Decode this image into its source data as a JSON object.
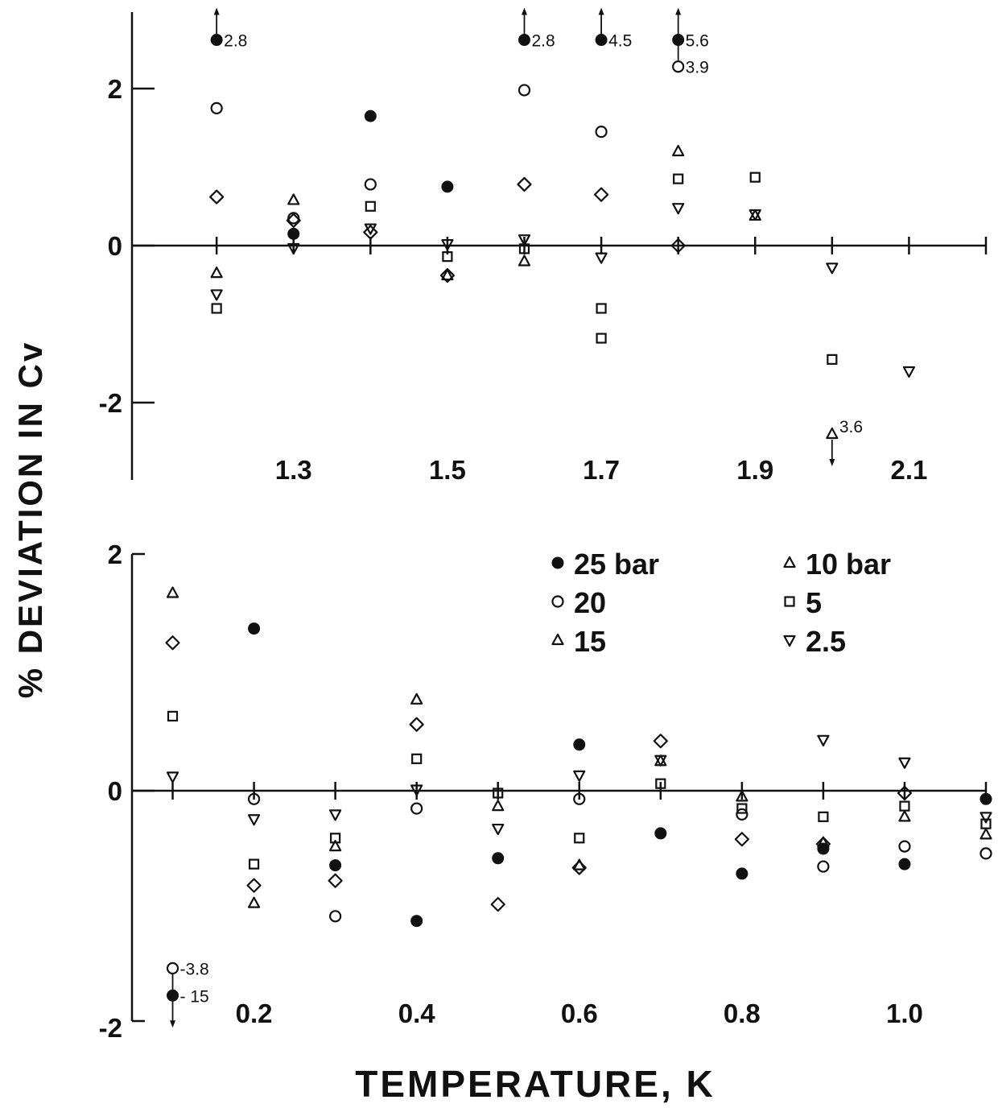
{
  "axis_titles": {
    "y": "% DEVIATION IN Cv",
    "x": "TEMPERATURE, K"
  },
  "legend": [
    {
      "marker": "filled-circle",
      "label": "25 bar"
    },
    {
      "marker": "open-circle",
      "label": "20"
    },
    {
      "marker": "triangle-up",
      "label": "15"
    },
    {
      "marker": "triangle-up",
      "label": "10 bar"
    },
    {
      "marker": "square",
      "label": "5"
    },
    {
      "marker": "triangle-down",
      "label": "2.5"
    }
  ],
  "chart_data": [
    {
      "type": "scatter",
      "panel": "upper",
      "xlabel": "",
      "ylabel": "% DEVIATION IN Cv",
      "xlim": [
        1.09,
        2.2
      ],
      "ylim": [
        -2.9,
        2.9
      ],
      "x_ticks": [
        1.2,
        1.3,
        1.4,
        1.5,
        1.6,
        1.7,
        1.8,
        1.9,
        2.0,
        2.1,
        2.2
      ],
      "x_tick_labels": [
        "1.3",
        "1.5",
        "1.7",
        "1.9",
        "2.1"
      ],
      "x_tick_label_values": [
        1.3,
        1.5,
        1.7,
        1.9,
        2.1
      ],
      "y_ticks": [
        -2,
        0,
        2
      ],
      "y_tick_labels": [
        "-2",
        "0",
        "2"
      ],
      "series": [
        {
          "name": "25 bar",
          "marker": "filled-circle",
          "points": [
            [
              1.3,
              0.15
            ],
            [
              1.4,
              1.65
            ],
            [
              1.5,
              0.75
            ]
          ]
        },
        {
          "name": "20",
          "marker": "open-circle",
          "points": [
            [
              1.2,
              1.75
            ],
            [
              1.3,
              0.35
            ],
            [
              1.4,
              0.78
            ],
            [
              1.6,
              1.98
            ],
            [
              1.7,
              1.45
            ]
          ]
        },
        {
          "name": "15",
          "marker": "triangle-up",
          "points": [
            [
              1.3,
              0.58
            ],
            [
              1.6,
              -0.2
            ],
            [
              1.8,
              1.2
            ]
          ]
        },
        {
          "name": "10 bar",
          "marker": "triangle-up",
          "points": [
            [
              1.2,
              -0.35
            ],
            [
              1.5,
              -0.38
            ],
            [
              1.9,
              0.38
            ]
          ]
        },
        {
          "name": "5",
          "marker": "square",
          "points": [
            [
              1.2,
              -0.8
            ],
            [
              1.4,
              0.5
            ],
            [
              1.5,
              -0.14
            ],
            [
              1.6,
              -0.04
            ],
            [
              1.7,
              -0.8
            ],
            [
              1.7,
              -1.18
            ],
            [
              1.8,
              0.85
            ],
            [
              1.9,
              0.87
            ],
            [
              2.0,
              -1.45
            ]
          ]
        },
        {
          "name": "2.5",
          "marker": "triangle-down",
          "points": [
            [
              1.2,
              -0.62
            ],
            [
              1.3,
              -0.03
            ],
            [
              1.4,
              0.22
            ],
            [
              1.5,
              0.02
            ],
            [
              1.6,
              0.08
            ],
            [
              1.7,
              -0.15
            ],
            [
              1.8,
              0.48
            ],
            [
              1.9,
              0.4
            ],
            [
              2.0,
              -0.28
            ],
            [
              2.1,
              -1.6
            ]
          ]
        },
        {
          "name": "",
          "marker": "diamond",
          "points": [
            [
              1.2,
              0.62
            ],
            [
              1.3,
              0.32
            ],
            [
              1.4,
              0.17
            ],
            [
              1.5,
              -0.38
            ],
            [
              1.6,
              0.78
            ],
            [
              1.7,
              0.65
            ],
            [
              1.8,
              0.0
            ]
          ]
        }
      ],
      "offscale": [
        {
          "marker": "filled-circle",
          "x": 1.2,
          "y_plot": 2.62,
          "label": "2.8",
          "arrow": "up"
        },
        {
          "marker": "filled-circle",
          "x": 1.6,
          "y_plot": 2.62,
          "label": "2.8",
          "arrow": "up"
        },
        {
          "marker": "filled-circle",
          "x": 1.7,
          "y_plot": 2.62,
          "label": "4.5",
          "arrow": "up"
        },
        {
          "marker": "filled-circle",
          "x": 1.8,
          "y_plot": 2.62,
          "label": "5.6",
          "arrow": "up"
        },
        {
          "marker": "open-circle",
          "x": 1.8,
          "y_plot": 2.28,
          "label": "3.9",
          "arrow": "up"
        },
        {
          "marker": "triangle-up",
          "x": 2.0,
          "y_plot": -2.4,
          "label": "3.6",
          "arrow": "down"
        }
      ]
    },
    {
      "type": "scatter",
      "panel": "lower",
      "xlabel": "TEMPERATURE, K",
      "ylabel": "% DEVIATION IN Cv",
      "xlim": [
        0.05,
        1.1
      ],
      "ylim": [
        -2.0,
        2.0
      ],
      "x_ticks": [
        0.1,
        0.2,
        0.3,
        0.4,
        0.5,
        0.6,
        0.7,
        0.8,
        0.9,
        1.0,
        1.1
      ],
      "x_tick_labels": [
        "0.2",
        "0.4",
        "0.6",
        "0.8",
        "1.0"
      ],
      "x_tick_label_values": [
        0.2,
        0.4,
        0.6,
        0.8,
        1.0
      ],
      "y_ticks": [
        -2,
        0,
        2
      ],
      "y_tick_labels": [
        "-2",
        "0",
        "2"
      ],
      "series": [
        {
          "name": "25 bar",
          "marker": "filled-circle",
          "points": [
            [
              0.2,
              1.37
            ],
            [
              0.3,
              -0.63
            ],
            [
              0.4,
              -1.1
            ],
            [
              0.5,
              -0.57
            ],
            [
              0.6,
              0.39
            ],
            [
              0.7,
              -0.36
            ],
            [
              0.8,
              -0.7
            ],
            [
              0.9,
              -0.49
            ],
            [
              1.0,
              -0.62
            ],
            [
              1.1,
              -0.07
            ]
          ]
        },
        {
          "name": "20",
          "marker": "open-circle",
          "points": [
            [
              0.2,
              -0.07
            ],
            [
              0.3,
              -1.06
            ],
            [
              0.4,
              -0.15
            ],
            [
              0.6,
              -0.07
            ],
            [
              0.8,
              -0.2
            ],
            [
              0.9,
              -0.64
            ],
            [
              1.0,
              -0.47
            ],
            [
              1.1,
              -0.53
            ]
          ]
        },
        {
          "name": "15",
          "marker": "triangle-up",
          "points": [
            [
              0.1,
              1.67
            ],
            [
              0.2,
              -0.95
            ],
            [
              0.4,
              0.77
            ],
            [
              0.6,
              -0.63
            ],
            [
              0.7,
              0.25
            ],
            [
              0.8,
              -0.05
            ]
          ]
        },
        {
          "name": "10 bar",
          "marker": "triangle-up",
          "points": [
            [
              0.3,
              -0.47
            ],
            [
              0.5,
              -0.13
            ],
            [
              0.9,
              -0.44
            ],
            [
              1.0,
              -0.22
            ],
            [
              1.1,
              -0.37
            ]
          ]
        },
        {
          "name": "5",
          "marker": "square",
          "points": [
            [
              0.1,
              0.63
            ],
            [
              0.2,
              -0.62
            ],
            [
              0.3,
              -0.4
            ],
            [
              0.4,
              0.27
            ],
            [
              0.5,
              -0.02
            ],
            [
              0.6,
              -0.4
            ],
            [
              0.7,
              0.06
            ],
            [
              0.8,
              -0.15
            ],
            [
              0.9,
              -0.22
            ],
            [
              1.0,
              -0.13
            ],
            [
              1.1,
              -0.28
            ]
          ]
        },
        {
          "name": "2.5",
          "marker": "triangle-down",
          "points": [
            [
              0.1,
              0.12
            ],
            [
              0.2,
              -0.24
            ],
            [
              0.3,
              -0.2
            ],
            [
              0.4,
              0.01
            ],
            [
              0.5,
              -0.32
            ],
            [
              0.6,
              0.13
            ],
            [
              0.7,
              0.26
            ],
            [
              0.9,
              0.43
            ],
            [
              1.0,
              0.24
            ],
            [
              1.1,
              -0.22
            ]
          ]
        },
        {
          "name": "",
          "marker": "diamond",
          "points": [
            [
              0.1,
              1.25
            ],
            [
              0.2,
              -0.8
            ],
            [
              0.3,
              -0.76
            ],
            [
              0.4,
              0.56
            ],
            [
              0.5,
              -0.96
            ],
            [
              0.6,
              -0.65
            ],
            [
              0.7,
              0.42
            ],
            [
              0.8,
              -0.41
            ],
            [
              0.9,
              -0.45
            ],
            [
              1.0,
              -0.02
            ]
          ]
        }
      ],
      "offscale": [
        {
          "marker": "open-circle",
          "x": 0.1,
          "y_plot": -1.5,
          "label": "-3.8",
          "arrow": "down"
        },
        {
          "marker": "filled-circle",
          "x": 0.1,
          "y_plot": -1.73,
          "label": "- 15",
          "arrow": "down"
        }
      ]
    }
  ]
}
